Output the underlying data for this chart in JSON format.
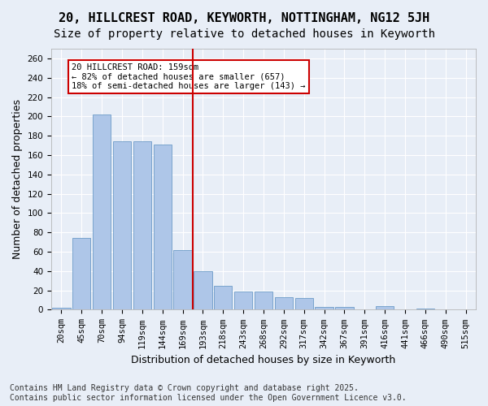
{
  "title_line1": "20, HILLCREST ROAD, KEYWORTH, NOTTINGHAM, NG12 5JH",
  "title_line2": "Size of property relative to detached houses in Keyworth",
  "xlabel": "Distribution of detached houses by size in Keyworth",
  "ylabel": "Number of detached properties",
  "categories": [
    "20sqm",
    "45sqm",
    "70sqm",
    "94sqm",
    "119sqm",
    "144sqm",
    "169sqm",
    "193sqm",
    "218sqm",
    "243sqm",
    "268sqm",
    "292sqm",
    "317sqm",
    "342sqm",
    "367sqm",
    "391sqm",
    "416sqm",
    "441sqm",
    "466sqm",
    "490sqm",
    "515sqm"
  ],
  "values": [
    2,
    74,
    202,
    174,
    174,
    171,
    62,
    40,
    25,
    19,
    19,
    13,
    12,
    3,
    3,
    0,
    4,
    0,
    1,
    0,
    0
  ],
  "bar_color": "#aec6e8",
  "bar_edge_color": "#5a8fc0",
  "vline_x": 7,
  "vline_color": "#cc0000",
  "annotation_text": "20 HILLCREST ROAD: 159sqm\n← 82% of detached houses are smaller (657)\n18% of semi-detached houses are larger (143) →",
  "annotation_box_color": "#ffffff",
  "annotation_box_edge": "#cc0000",
  "background_color": "#e8eef7",
  "plot_bg_color": "#e8eef7",
  "grid_color": "#ffffff",
  "ylim": [
    0,
    270
  ],
  "yticks": [
    0,
    20,
    40,
    60,
    80,
    100,
    120,
    140,
    160,
    180,
    200,
    220,
    240,
    260
  ],
  "footer_line1": "Contains HM Land Registry data © Crown copyright and database right 2025.",
  "footer_line2": "Contains public sector information licensed under the Open Government Licence v3.0.",
  "title_fontsize": 11,
  "subtitle_fontsize": 10,
  "tick_fontsize": 7.5,
  "ylabel_fontsize": 9,
  "xlabel_fontsize": 9,
  "footer_fontsize": 7
}
